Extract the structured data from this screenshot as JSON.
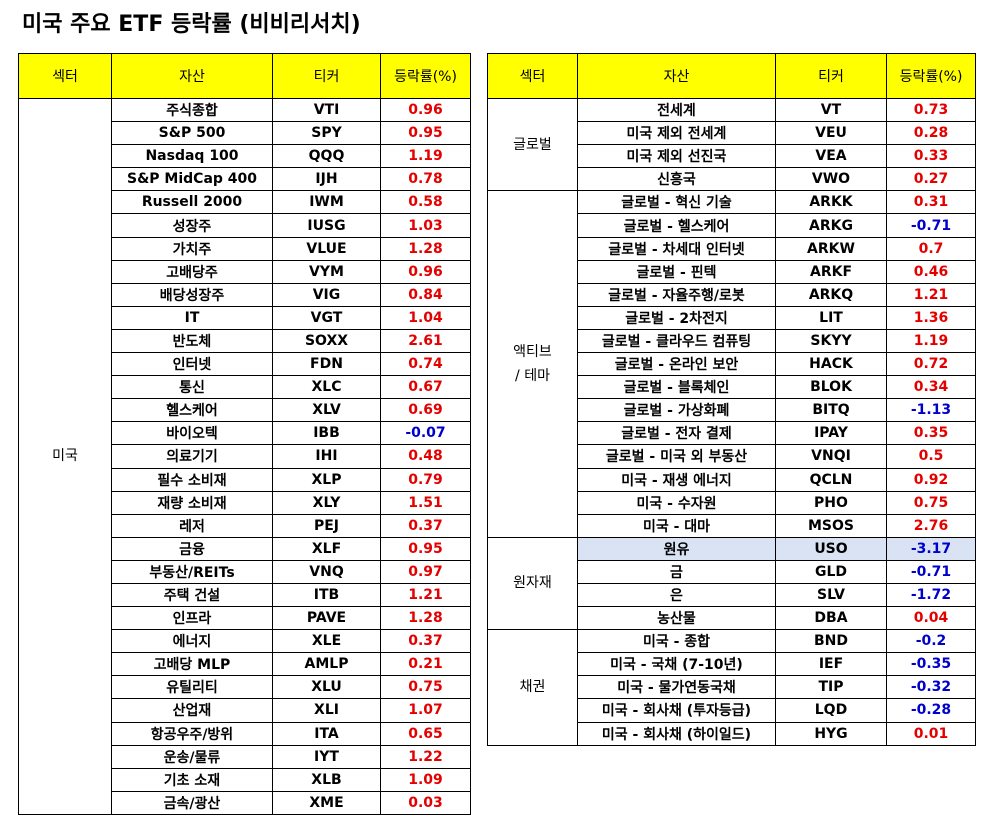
{
  "title": "미국 주요 ETF 등락률 (비비리서치)",
  "headers": {
    "sector": "섹터",
    "asset": "자산",
    "ticker": "티커",
    "change": "등락률(%)"
  },
  "left": {
    "groups": [
      {
        "sector": "미국",
        "rows": [
          {
            "asset": "주식종합",
            "ticker": "VTI",
            "change": "0.96"
          },
          {
            "asset": "S&P 500",
            "ticker": "SPY",
            "change": "0.95"
          },
          {
            "asset": "Nasdaq 100",
            "ticker": "QQQ",
            "change": "1.19"
          },
          {
            "asset": "S&P MidCap 400",
            "ticker": "IJH",
            "change": "0.78"
          },
          {
            "asset": "Russell 2000",
            "ticker": "IWM",
            "change": "0.58"
          },
          {
            "asset": "성장주",
            "ticker": "IUSG",
            "change": "1.03"
          },
          {
            "asset": "가치주",
            "ticker": "VLUE",
            "change": "1.28"
          },
          {
            "asset": "고배당주",
            "ticker": "VYM",
            "change": "0.96"
          },
          {
            "asset": "배당성장주",
            "ticker": "VIG",
            "change": "0.84"
          },
          {
            "asset": "IT",
            "ticker": "VGT",
            "change": "1.04"
          },
          {
            "asset": "반도체",
            "ticker": "SOXX",
            "change": "2.61"
          },
          {
            "asset": "인터넷",
            "ticker": "FDN",
            "change": "0.74"
          },
          {
            "asset": "통신",
            "ticker": "XLC",
            "change": "0.67"
          },
          {
            "asset": "헬스케어",
            "ticker": "XLV",
            "change": "0.69"
          },
          {
            "asset": "바이오텍",
            "ticker": "IBB",
            "change": "-0.07"
          },
          {
            "asset": "의료기기",
            "ticker": "IHI",
            "change": "0.48"
          },
          {
            "asset": "필수 소비재",
            "ticker": "XLP",
            "change": "0.79"
          },
          {
            "asset": "재량 소비재",
            "ticker": "XLY",
            "change": "1.51"
          },
          {
            "asset": "레저",
            "ticker": "PEJ",
            "change": "0.37"
          },
          {
            "asset": "금융",
            "ticker": "XLF",
            "change": "0.95"
          },
          {
            "asset": "부동산/REITs",
            "ticker": "VNQ",
            "change": "0.97"
          },
          {
            "asset": "주택 건설",
            "ticker": "ITB",
            "change": "1.21"
          },
          {
            "asset": "인프라",
            "ticker": "PAVE",
            "change": "1.28"
          },
          {
            "asset": "에너지",
            "ticker": "XLE",
            "change": "0.37"
          },
          {
            "asset": "고배당 MLP",
            "ticker": "AMLP",
            "change": "0.21"
          },
          {
            "asset": "유틸리티",
            "ticker": "XLU",
            "change": "0.75"
          },
          {
            "asset": "산업재",
            "ticker": "XLI",
            "change": "1.07"
          },
          {
            "asset": "항공우주/방위",
            "ticker": "ITA",
            "change": "0.65"
          },
          {
            "asset": "운송/물류",
            "ticker": "IYT",
            "change": "1.22"
          },
          {
            "asset": "기초 소재",
            "ticker": "XLB",
            "change": "1.09"
          },
          {
            "asset": "금속/광산",
            "ticker": "XME",
            "change": "0.03"
          }
        ]
      }
    ]
  },
  "right": {
    "groups": [
      {
        "sector": "글로벌",
        "rows": [
          {
            "asset": "전세계",
            "ticker": "VT",
            "change": "0.73"
          },
          {
            "asset": "미국 제외 전세계",
            "ticker": "VEU",
            "change": "0.28"
          },
          {
            "asset": "미국 제외 선진국",
            "ticker": "VEA",
            "change": "0.33"
          },
          {
            "asset": "신흥국",
            "ticker": "VWO",
            "change": "0.27"
          }
        ]
      },
      {
        "sector": "액티브\n/ 테마",
        "rows": [
          {
            "asset": "글로벌 - 혁신 기술",
            "ticker": "ARKK",
            "change": "0.31"
          },
          {
            "asset": "글로벌 - 헬스케어",
            "ticker": "ARKG",
            "change": "-0.71"
          },
          {
            "asset": "글로벌 - 차세대 인터넷",
            "ticker": "ARKW",
            "change": "0.7"
          },
          {
            "asset": "글로벌 - 핀텍",
            "ticker": "ARKF",
            "change": "0.46"
          },
          {
            "asset": "글로벌 - 자율주행/로봇",
            "ticker": "ARKQ",
            "change": "1.21"
          },
          {
            "asset": "글로벌 - 2차전지",
            "ticker": "LIT",
            "change": "1.36"
          },
          {
            "asset": "글로벌 - 클라우드 컴퓨팅",
            "ticker": "SKYY",
            "change": "1.19"
          },
          {
            "asset": "글로벌 - 온라인 보안",
            "ticker": "HACK",
            "change": "0.72"
          },
          {
            "asset": "글로벌 - 블록체인",
            "ticker": "BLOK",
            "change": "0.34"
          },
          {
            "asset": "글로벌 - 가상화폐",
            "ticker": "BITQ",
            "change": "-1.13"
          },
          {
            "asset": "글로벌 - 전자 결제",
            "ticker": "IPAY",
            "change": "0.35"
          },
          {
            "asset": "글로벌 - 미국 외 부동산",
            "ticker": "VNQI",
            "change": "0.5"
          },
          {
            "asset": "미국 - 재생 에너지",
            "ticker": "QCLN",
            "change": "0.92"
          },
          {
            "asset": "미국 - 수자원",
            "ticker": "PHO",
            "change": "0.75"
          },
          {
            "asset": "미국 - 대마",
            "ticker": "MSOS",
            "change": "2.76"
          }
        ]
      },
      {
        "sector": "원자재",
        "rows": [
          {
            "asset": "원유",
            "ticker": "USO",
            "change": "-3.17",
            "highlight": true
          },
          {
            "asset": "금",
            "ticker": "GLD",
            "change": "-0.71"
          },
          {
            "asset": "은",
            "ticker": "SLV",
            "change": "-1.72"
          },
          {
            "asset": "농산물",
            "ticker": "DBA",
            "change": "0.04"
          }
        ]
      },
      {
        "sector": "채권",
        "rows": [
          {
            "asset": "미국 - 종합",
            "ticker": "BND",
            "change": "-0.2"
          },
          {
            "asset": "미국 - 국채 (7-10년)",
            "ticker": "IEF",
            "change": "-0.35"
          },
          {
            "asset": "미국 - 물가연동국채",
            "ticker": "TIP",
            "change": "-0.32"
          },
          {
            "asset": "미국 - 회사채 (투자등급)",
            "ticker": "LQD",
            "change": "-0.28"
          },
          {
            "asset": "미국 - 회사채 (하이일드)",
            "ticker": "HYG",
            "change": "0.01"
          }
        ]
      }
    ]
  },
  "colors": {
    "header_bg": "#ffff00",
    "positive": "#e50000",
    "negative": "#0000cc",
    "highlight": "#dae3f3"
  }
}
